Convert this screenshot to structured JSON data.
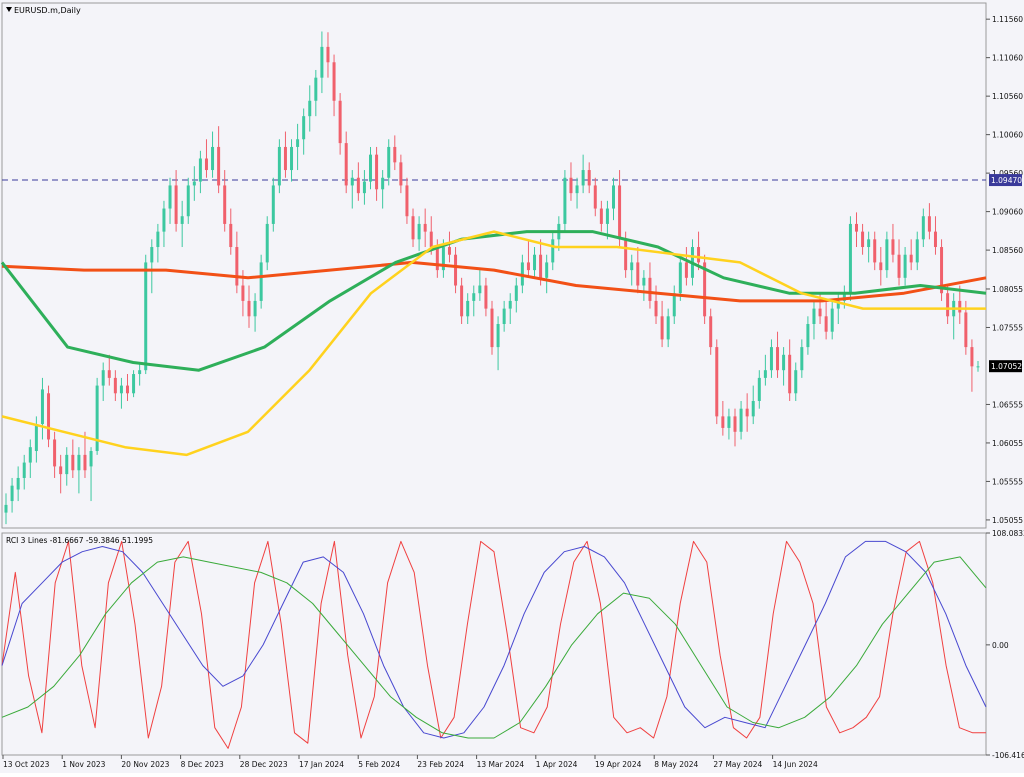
{
  "header": {
    "symbol_label": "EURUSD.m,Daily"
  },
  "subwindow": {
    "label": "RCI 3 Lines -81.6667 -59.3846 51.1995"
  },
  "colors": {
    "background": "#F4F4F9",
    "grid_line": "#9A9A9A",
    "bull": "#3CC8A0",
    "bear": "#F0606C",
    "ma_yellow": "#FFD21E",
    "ma_green": "#2EAF5A",
    "ma_red": "#F25016",
    "h_line": "#3A3A9A",
    "rci_short": "#F04040",
    "rci_mid": "#4848D0",
    "rci_long": "#3AAA3A"
  },
  "chart_data": [
    {
      "type": "candlestick",
      "title": "EURUSD.m,Daily",
      "x_ticks": [
        "13 Oct 2023",
        "1 Nov 2023",
        "20 Nov 2023",
        "8 Dec 2023",
        "28 Dec 2023",
        "17 Jan 2024",
        "5 Feb 2024",
        "23 Feb 2024",
        "13 Mar 2024",
        "1 Apr 2024",
        "19 Apr 2024",
        "8 May 2024",
        "27 May 2024",
        "14 Jun 2024"
      ],
      "y_ticks": [
        "1.11560",
        "1.11060",
        "1.10560",
        "1.10060",
        "1.09560",
        "1.09060",
        "1.08560",
        "1.08055",
        "1.07555",
        "1.06555",
        "1.06055",
        "1.05555",
        "1.05055"
      ],
      "ylim": [
        1.0495,
        1.1177
      ],
      "horizontal_line": {
        "value": 1.0947,
        "label": "1.09470",
        "style": "dashed"
      },
      "current_price": {
        "value": 1.07052,
        "label": "1.07052"
      },
      "candles": [
        [
          1.0515,
          1.054,
          1.05,
          1.0525
        ],
        [
          1.053,
          1.056,
          1.0515,
          1.055
        ],
        [
          1.0545,
          1.0575,
          1.053,
          1.056
        ],
        [
          1.056,
          1.059,
          1.0545,
          1.058
        ],
        [
          1.058,
          1.061,
          1.056,
          1.06
        ],
        [
          1.0595,
          1.064,
          1.058,
          1.063
        ],
        [
          1.063,
          1.069,
          1.061,
          1.0675
        ],
        [
          1.067,
          1.068,
          1.06,
          1.061
        ],
        [
          1.061,
          1.062,
          1.056,
          1.0575
        ],
        [
          1.0575,
          1.059,
          1.054,
          1.0565
        ],
        [
          1.0565,
          1.06,
          1.055,
          1.059
        ],
        [
          1.059,
          1.061,
          1.056,
          1.057
        ],
        [
          1.057,
          1.06,
          1.054,
          1.059
        ],
        [
          1.059,
          1.062,
          1.056,
          1.057
        ],
        [
          1.0575,
          1.06,
          1.053,
          1.0595
        ],
        [
          1.0595,
          1.069,
          1.059,
          1.068
        ],
        [
          1.068,
          1.071,
          1.066,
          1.07
        ],
        [
          1.07,
          1.072,
          1.068,
          1.069
        ],
        [
          1.069,
          1.07,
          1.066,
          1.067
        ],
        [
          1.067,
          1.069,
          1.065,
          1.068
        ],
        [
          1.068,
          1.0695,
          1.066,
          1.067
        ],
        [
          1.067,
          1.07,
          1.0665,
          1.0695
        ],
        [
          1.0695,
          1.071,
          1.068,
          1.07
        ],
        [
          1.07,
          1.085,
          1.0695,
          1.084
        ],
        [
          1.084,
          1.087,
          1.08,
          1.086
        ],
        [
          1.086,
          1.089,
          1.084,
          1.088
        ],
        [
          1.088,
          1.092,
          1.086,
          1.091
        ],
        [
          1.091,
          1.095,
          1.089,
          1.094
        ],
        [
          1.094,
          1.096,
          1.088,
          1.089
        ],
        [
          1.089,
          1.092,
          1.086,
          1.09
        ],
        [
          1.09,
          1.095,
          1.089,
          1.094
        ],
        [
          1.094,
          1.0965,
          1.092,
          1.0945
        ],
        [
          1.0945,
          1.0985,
          1.093,
          1.0975
        ],
        [
          1.0975,
          1.1,
          1.095,
          1.096
        ],
        [
          1.096,
          1.101,
          1.095,
          1.099
        ],
        [
          1.099,
          1.1017,
          1.093,
          1.094
        ],
        [
          1.094,
          1.096,
          1.088,
          1.089
        ],
        [
          1.089,
          1.091,
          1.085,
          1.086
        ],
        [
          1.086,
          1.088,
          1.08,
          1.081
        ],
        [
          1.081,
          1.083,
          1.077,
          1.079
        ],
        [
          1.079,
          1.081,
          1.0755,
          1.077
        ],
        [
          1.077,
          1.08,
          1.075,
          1.079
        ],
        [
          1.079,
          1.085,
          1.078,
          1.084
        ],
        [
          1.084,
          1.09,
          1.083,
          1.089
        ],
        [
          1.089,
          1.095,
          1.088,
          1.094
        ],
        [
          1.094,
          1.1,
          1.093,
          1.099
        ],
        [
          1.099,
          1.101,
          1.095,
          1.096
        ],
        [
          1.096,
          1.1,
          1.0945,
          1.099
        ],
        [
          1.099,
          1.102,
          1.096,
          1.1
        ],
        [
          1.1,
          1.104,
          1.098,
          1.103
        ],
        [
          1.103,
          1.107,
          1.101,
          1.105
        ],
        [
          1.105,
          1.109,
          1.103,
          1.108
        ],
        [
          1.108,
          1.114,
          1.106,
          1.112
        ],
        [
          1.112,
          1.1139,
          1.108,
          1.11
        ],
        [
          1.11,
          1.111,
          1.103,
          1.105
        ],
        [
          1.105,
          1.106,
          1.098,
          1.0995
        ],
        [
          1.0995,
          1.101,
          1.093,
          1.094
        ],
        [
          1.094,
          1.096,
          1.091,
          1.095
        ],
        [
          1.095,
          1.097,
          1.092,
          1.093
        ],
        [
          1.093,
          1.096,
          1.0915,
          1.0945
        ],
        [
          1.0945,
          1.099,
          1.0935,
          1.098
        ],
        [
          1.098,
          1.099,
          1.092,
          1.0935
        ],
        [
          1.0935,
          1.096,
          1.091,
          1.095
        ],
        [
          1.095,
          1.1,
          1.094,
          1.099
        ],
        [
          1.099,
          1.1005,
          1.096,
          1.097
        ],
        [
          1.097,
          1.098,
          1.093,
          1.094
        ],
        [
          1.094,
          1.095,
          1.089,
          1.09
        ],
        [
          1.09,
          1.091,
          1.086,
          1.087
        ],
        [
          1.087,
          1.09,
          1.0855,
          1.089
        ],
        [
          1.089,
          1.091,
          1.086,
          1.088
        ],
        [
          1.088,
          1.09,
          1.085,
          1.086
        ],
        [
          1.086,
          1.087,
          1.082,
          1.083
        ],
        [
          1.083,
          1.087,
          1.082,
          1.086
        ],
        [
          1.086,
          1.088,
          1.084,
          1.085
        ],
        [
          1.085,
          1.086,
          1.08,
          1.081
        ],
        [
          1.081,
          1.082,
          1.076,
          1.077
        ],
        [
          1.077,
          1.08,
          1.076,
          1.079
        ],
        [
          1.079,
          1.081,
          1.077,
          1.08
        ],
        [
          1.08,
          1.083,
          1.079,
          1.081
        ],
        [
          1.081,
          1.082,
          1.077,
          1.078
        ],
        [
          1.078,
          1.079,
          1.072,
          1.073
        ],
        [
          1.073,
          1.077,
          1.07,
          1.076
        ],
        [
          1.076,
          1.079,
          1.075,
          1.078
        ],
        [
          1.078,
          1.08,
          1.076,
          1.079
        ],
        [
          1.079,
          1.082,
          1.0775,
          1.081
        ],
        [
          1.081,
          1.085,
          1.08,
          1.084
        ],
        [
          1.084,
          1.087,
          1.082,
          1.083
        ],
        [
          1.083,
          1.086,
          1.082,
          1.085
        ],
        [
          1.085,
          1.087,
          1.081,
          1.082
        ],
        [
          1.082,
          1.085,
          1.08,
          1.084
        ],
        [
          1.084,
          1.088,
          1.083,
          1.087
        ],
        [
          1.087,
          1.09,
          1.0855,
          1.089
        ],
        [
          1.089,
          1.096,
          1.088,
          1.095
        ],
        [
          1.095,
          1.097,
          1.092,
          1.093
        ],
        [
          1.093,
          1.095,
          1.091,
          1.094
        ],
        [
          1.094,
          1.098,
          1.093,
          1.096
        ],
        [
          1.096,
          1.097,
          1.093,
          1.094
        ],
        [
          1.094,
          1.095,
          1.09,
          1.091
        ],
        [
          1.091,
          1.092,
          1.088,
          1.089
        ],
        [
          1.089,
          1.092,
          1.087,
          1.091
        ],
        [
          1.091,
          1.095,
          1.0895,
          1.094
        ],
        [
          1.094,
          1.096,
          1.086,
          1.087
        ],
        [
          1.087,
          1.088,
          1.082,
          1.083
        ],
        [
          1.083,
          1.085,
          1.081,
          1.084
        ],
        [
          1.084,
          1.086,
          1.08,
          1.081
        ],
        [
          1.081,
          1.083,
          1.079,
          1.082
        ],
        [
          1.082,
          1.084,
          1.078,
          1.079
        ],
        [
          1.079,
          1.081,
          1.076,
          1.077
        ],
        [
          1.077,
          1.079,
          1.073,
          1.074
        ],
        [
          1.074,
          1.078,
          1.073,
          1.077
        ],
        [
          1.077,
          1.081,
          1.076,
          1.08
        ],
        [
          1.08,
          1.085,
          1.079,
          1.084
        ],
        [
          1.084,
          1.086,
          1.081,
          1.082
        ],
        [
          1.082,
          1.087,
          1.081,
          1.086
        ],
        [
          1.086,
          1.088,
          1.083,
          1.084
        ],
        [
          1.084,
          1.085,
          1.076,
          1.077
        ],
        [
          1.077,
          1.078,
          1.072,
          1.073
        ],
        [
          1.073,
          1.074,
          1.063,
          1.064
        ],
        [
          1.064,
          1.066,
          1.0615,
          1.0625
        ],
        [
          1.0625,
          1.065,
          1.061,
          1.064
        ],
        [
          1.064,
          1.065,
          1.0601,
          1.062
        ],
        [
          1.062,
          1.066,
          1.061,
          1.065
        ],
        [
          1.065,
          1.067,
          1.062,
          1.064
        ],
        [
          1.064,
          1.068,
          1.063,
          1.066
        ],
        [
          1.066,
          1.07,
          1.065,
          1.069
        ],
        [
          1.069,
          1.072,
          1.068,
          1.07
        ],
        [
          1.07,
          1.074,
          1.069,
          1.073
        ],
        [
          1.073,
          1.075,
          1.069,
          1.07
        ],
        [
          1.07,
          1.073,
          1.068,
          1.072
        ],
        [
          1.072,
          1.074,
          1.066,
          1.067
        ],
        [
          1.067,
          1.071,
          1.066,
          1.07
        ],
        [
          1.07,
          1.074,
          1.069,
          1.073
        ],
        [
          1.073,
          1.077,
          1.072,
          1.076
        ],
        [
          1.076,
          1.079,
          1.074,
          1.078
        ],
        [
          1.078,
          1.08,
          1.076,
          1.077
        ],
        [
          1.077,
          1.079,
          1.074,
          1.075
        ],
        [
          1.075,
          1.079,
          1.074,
          1.078
        ],
        [
          1.078,
          1.08,
          1.076,
          1.079
        ],
        [
          1.079,
          1.081,
          1.078,
          1.08
        ],
        [
          1.08,
          1.09,
          1.079,
          1.089
        ],
        [
          1.089,
          1.0905,
          1.086,
          1.088
        ],
        [
          1.088,
          1.089,
          1.085,
          1.086
        ],
        [
          1.086,
          1.088,
          1.084,
          1.087
        ],
        [
          1.087,
          1.088,
          1.083,
          1.084
        ],
        [
          1.084,
          1.086,
          1.081,
          1.083
        ],
        [
          1.083,
          1.088,
          1.082,
          1.087
        ],
        [
          1.087,
          1.089,
          1.084,
          1.085
        ],
        [
          1.085,
          1.087,
          1.081,
          1.082
        ],
        [
          1.082,
          1.086,
          1.081,
          1.085
        ],
        [
          1.085,
          1.087,
          1.083,
          1.084
        ],
        [
          1.084,
          1.088,
          1.083,
          1.087
        ],
        [
          1.087,
          1.091,
          1.086,
          1.09
        ],
        [
          1.09,
          1.0917,
          1.087,
          1.088
        ],
        [
          1.088,
          1.09,
          1.085,
          1.086
        ],
        [
          1.086,
          1.087,
          1.079,
          1.08
        ],
        [
          1.08,
          1.081,
          1.076,
          1.077
        ],
        [
          1.077,
          1.08,
          1.074,
          1.079
        ],
        [
          1.079,
          1.081,
          1.076,
          1.0775
        ],
        [
          1.0775,
          1.079,
          1.072,
          1.073
        ],
        [
          1.073,
          1.074,
          1.0672,
          1.0705
        ],
        [
          1.0705,
          1.0712,
          1.0698,
          1.0705
        ]
      ],
      "ma_yellow": [
        1.064,
        1.062,
        1.06,
        1.059,
        1.062,
        1.07,
        1.08,
        1.086,
        1.088,
        1.086,
        1.086,
        1.085,
        1.084,
        1.08,
        1.078,
        1.078,
        1.078
      ],
      "ma_green": [
        1.084,
        1.073,
        1.071,
        1.07,
        1.073,
        1.079,
        1.084,
        1.087,
        1.088,
        1.088,
        1.086,
        1.082,
        1.08,
        1.08,
        1.081,
        1.08
      ],
      "ma_red": [
        1.0835,
        1.083,
        1.083,
        1.082,
        1.083,
        1.084,
        1.083,
        1.081,
        1.08,
        1.079,
        1.079,
        1.08,
        1.082
      ]
    },
    {
      "type": "line",
      "title": "RCI 3 Lines -81.6667 -59.3846 51.1995",
      "y_ticks": [
        "108.0833",
        "0.00",
        "-106.4167"
      ],
      "ylim": [
        -106.4167,
        108.0833
      ],
      "series": [
        {
          "values": [
            -20,
            70,
            -30,
            -85,
            60,
            100,
            -20,
            -80,
            60,
            100,
            20,
            -90,
            -40,
            80,
            100,
            30,
            -80,
            -100,
            -60,
            60,
            100,
            20,
            -85,
            -95,
            40,
            100,
            -10,
            -90,
            -50,
            60,
            100,
            70,
            -20,
            -90,
            -70,
            20,
            100,
            90,
            10,
            -80,
            -85,
            -60,
            20,
            80,
            100,
            40,
            -70,
            -85,
            -80,
            -90,
            -50,
            40,
            100,
            80,
            -10,
            -80,
            -90,
            -70,
            30,
            100,
            80,
            40,
            -60,
            -85,
            -80,
            -70,
            -50,
            30,
            90,
            100,
            60,
            -20,
            -80,
            -85,
            -85
          ]
        },
        {
          "values": [
            -20,
            40,
            60,
            80,
            90,
            95,
            90,
            70,
            40,
            10,
            -20,
            -40,
            -30,
            0,
            40,
            80,
            85,
            70,
            30,
            -20,
            -60,
            -85,
            -90,
            -85,
            -60,
            -20,
            30,
            70,
            90,
            95,
            85,
            60,
            20,
            -20,
            -60,
            -80,
            -70,
            -75,
            -80,
            -40,
            0,
            40,
            85,
            100,
            100,
            90,
            70,
            30,
            -20,
            -60
          ]
        },
        {
          "values": [
            -70,
            -60,
            -40,
            -10,
            30,
            60,
            80,
            85,
            80,
            75,
            70,
            60,
            40,
            10,
            -20,
            -50,
            -70,
            -85,
            -90,
            -90,
            -75,
            -40,
            0,
            30,
            50,
            45,
            20,
            -20,
            -60,
            -75,
            -80,
            -70,
            -50,
            -20,
            20,
            50,
            80,
            85,
            55
          ]
        }
      ]
    }
  ]
}
